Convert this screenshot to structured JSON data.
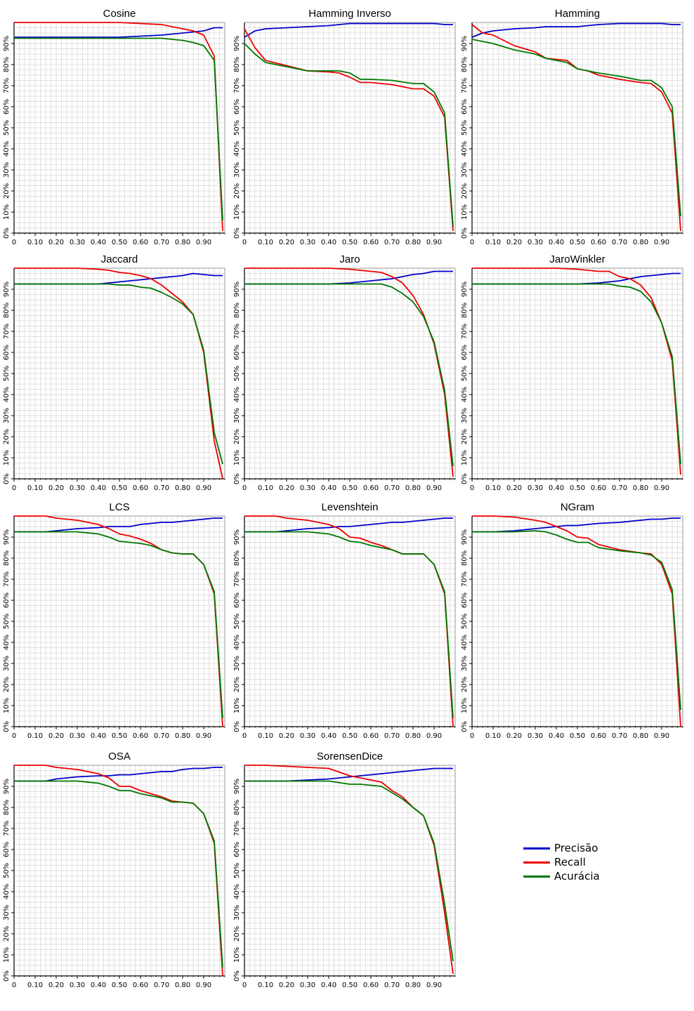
{
  "colors": {
    "precisao": "#0000cc",
    "recall": "#ee0000",
    "acuracia": "#007700",
    "grid": "#d9d9d9",
    "axis": "#000000"
  },
  "axes": {
    "x_ticks": [
      "0",
      "0.10",
      "0.20",
      "0.30",
      "0.40",
      "0.50",
      "0.60",
      "0.70",
      "0.80",
      "0.90"
    ],
    "y_ticks": [
      "0%",
      "10%",
      "20%",
      "30%",
      "40%",
      "50%",
      "60%",
      "70%",
      "80%",
      "90%"
    ]
  },
  "legend": [
    {
      "key": "precisao",
      "label": "Precisão"
    },
    {
      "key": "recall",
      "label": "Recall"
    },
    {
      "key": "acuracia",
      "label": "Acurácia"
    }
  ],
  "chart_data": [
    {
      "type": "line",
      "title": "Cosine",
      "xlim": [
        0,
        1
      ],
      "ylim": [
        0,
        100
      ],
      "grid": true,
      "x": [
        0,
        0.1,
        0.2,
        0.3,
        0.4,
        0.5,
        0.6,
        0.7,
        0.8,
        0.85,
        0.9,
        0.95,
        0.99
      ],
      "series": [
        {
          "name": "Precisão",
          "values": [
            93,
            93,
            93,
            93,
            93,
            93,
            93.5,
            94,
            95,
            95.5,
            96,
            97.5,
            97.5
          ]
        },
        {
          "name": "Recall",
          "values": [
            100,
            100,
            100,
            100,
            100,
            100,
            99.5,
            99,
            97,
            96,
            94,
            84,
            1
          ]
        },
        {
          "name": "Acurácia",
          "values": [
            92.5,
            92.5,
            92.5,
            92.5,
            92.5,
            92.5,
            92.5,
            92.5,
            91.5,
            90.5,
            89,
            82,
            6
          ]
        }
      ]
    },
    {
      "type": "line",
      "title": "Hamming Inverso",
      "xlim": [
        0,
        1
      ],
      "ylim": [
        0,
        100
      ],
      "grid": true,
      "x": [
        0,
        0.05,
        0.1,
        0.2,
        0.3,
        0.4,
        0.45,
        0.5,
        0.55,
        0.6,
        0.7,
        0.8,
        0.85,
        0.9,
        0.95,
        0.99
      ],
      "series": [
        {
          "name": "Precisão",
          "values": [
            93,
            96,
            97,
            97.5,
            98,
            98.5,
            99,
            99.5,
            99.5,
            99.5,
            99.5,
            99.5,
            99.5,
            99.5,
            99,
            99
          ]
        },
        {
          "name": "Recall",
          "values": [
            97,
            88,
            82,
            79.5,
            77,
            76.5,
            76,
            74,
            71.5,
            71.5,
            70.5,
            68.5,
            68.5,
            65,
            55,
            1
          ]
        },
        {
          "name": "Acurácia",
          "values": [
            90,
            85,
            81,
            79,
            77,
            77,
            77,
            76,
            73,
            73,
            72.5,
            71,
            71,
            67,
            57,
            3
          ]
        }
      ]
    },
    {
      "type": "line",
      "title": "Hamming",
      "xlim": [
        0,
        1
      ],
      "ylim": [
        0,
        100
      ],
      "grid": true,
      "x": [
        0,
        0.05,
        0.1,
        0.2,
        0.3,
        0.35,
        0.45,
        0.5,
        0.55,
        0.6,
        0.7,
        0.8,
        0.85,
        0.9,
        0.95,
        0.99
      ],
      "series": [
        {
          "name": "Precisão",
          "values": [
            93,
            95,
            96,
            97,
            97.5,
            98,
            98,
            98,
            98.5,
            99,
            99.5,
            99.5,
            99.5,
            99.5,
            99,
            99
          ]
        },
        {
          "name": "Recall",
          "values": [
            99,
            95,
            94,
            89,
            86,
            83,
            82,
            78,
            77,
            75,
            73,
            71.5,
            71,
            67,
            57,
            1
          ]
        },
        {
          "name": "Acurácia",
          "values": [
            92,
            91,
            90,
            87,
            85,
            83,
            81,
            78,
            77,
            76,
            74.5,
            72.5,
            72.5,
            69,
            60,
            8
          ]
        }
      ]
    },
    {
      "type": "line",
      "title": "Jaccard",
      "xlim": [
        0,
        1
      ],
      "ylim": [
        0,
        100
      ],
      "grid": true,
      "x": [
        0,
        0.1,
        0.2,
        0.3,
        0.4,
        0.45,
        0.5,
        0.55,
        0.6,
        0.65,
        0.7,
        0.75,
        0.8,
        0.85,
        0.9,
        0.95,
        0.99
      ],
      "series": [
        {
          "name": "Precisão",
          "values": [
            92.5,
            92.5,
            92.5,
            92.5,
            92.5,
            93,
            93.5,
            94,
            94.5,
            95,
            95.5,
            96,
            96.5,
            97.5,
            97,
            96.5,
            96.5
          ]
        },
        {
          "name": "Recall",
          "values": [
            100,
            100,
            100,
            100,
            99.5,
            99,
            98,
            97.5,
            96.5,
            95,
            92,
            88,
            84,
            78,
            60,
            18,
            0
          ]
        },
        {
          "name": "Acurácia",
          "values": [
            92.5,
            92.5,
            92.5,
            92.5,
            92.5,
            92.5,
            92,
            92,
            91,
            90.5,
            88.5,
            86,
            83,
            78,
            61,
            22,
            7
          ]
        }
      ]
    },
    {
      "type": "line",
      "title": "Jaro",
      "xlim": [
        0,
        1
      ],
      "ylim": [
        0,
        100
      ],
      "grid": true,
      "x": [
        0,
        0.1,
        0.2,
        0.3,
        0.4,
        0.5,
        0.6,
        0.65,
        0.7,
        0.75,
        0.8,
        0.85,
        0.9,
        0.95,
        0.99
      ],
      "series": [
        {
          "name": "Precisão",
          "values": [
            92.5,
            92.5,
            92.5,
            92.5,
            92.5,
            93,
            94,
            94.5,
            95,
            96,
            97,
            97.5,
            98.5,
            98.5,
            98.5
          ]
        },
        {
          "name": "Recall",
          "values": [
            100,
            100,
            100,
            100,
            100,
            99.5,
            98.5,
            98,
            96,
            93,
            87,
            78,
            64,
            40,
            1
          ]
        },
        {
          "name": "Acurácia",
          "values": [
            92.5,
            92.5,
            92.5,
            92.5,
            92.5,
            92.5,
            92.5,
            92.5,
            91,
            88,
            84,
            77,
            65,
            42,
            6
          ]
        }
      ]
    },
    {
      "type": "line",
      "title": "JaroWinkler",
      "xlim": [
        0,
        1
      ],
      "ylim": [
        0,
        100
      ],
      "grid": true,
      "x": [
        0,
        0.1,
        0.2,
        0.3,
        0.4,
        0.5,
        0.6,
        0.65,
        0.7,
        0.75,
        0.8,
        0.85,
        0.9,
        0.95,
        0.99
      ],
      "series": [
        {
          "name": "Precisão",
          "values": [
            92.5,
            92.5,
            92.5,
            92.5,
            92.5,
            92.5,
            93,
            93.5,
            94,
            95,
            96,
            96.5,
            97,
            97.5,
            97.5
          ]
        },
        {
          "name": "Recall",
          "values": [
            100,
            100,
            100,
            100,
            100,
            99.5,
            98.5,
            98.5,
            96,
            95,
            92,
            86,
            74,
            56,
            2
          ]
        },
        {
          "name": "Acurácia",
          "values": [
            92.5,
            92.5,
            92.5,
            92.5,
            92.5,
            92.5,
            92.5,
            92.5,
            91.5,
            91,
            89,
            84,
            74,
            58,
            7
          ]
        }
      ]
    },
    {
      "type": "line",
      "title": "LCS",
      "xlim": [
        0,
        1
      ],
      "ylim": [
        0,
        100
      ],
      "grid": true,
      "x": [
        0,
        0.1,
        0.15,
        0.2,
        0.3,
        0.4,
        0.45,
        0.5,
        0.55,
        0.6,
        0.65,
        0.7,
        0.75,
        0.8,
        0.85,
        0.9,
        0.95,
        0.99
      ],
      "series": [
        {
          "name": "Precisão",
          "values": [
            92.5,
            92.5,
            92.5,
            93,
            94,
            94.5,
            95,
            95,
            95,
            96,
            96.5,
            97,
            97,
            97.5,
            98,
            98.5,
            99,
            99
          ]
        },
        {
          "name": "Recall",
          "values": [
            100,
            100,
            100,
            99,
            98,
            96,
            94,
            91.5,
            90.5,
            89,
            87,
            84,
            82.5,
            82,
            82,
            77,
            63,
            0
          ]
        },
        {
          "name": "Acurácia",
          "values": [
            92.5,
            92.5,
            92.5,
            92.5,
            92.5,
            91.5,
            90,
            88,
            87.5,
            87,
            86,
            84,
            82.5,
            82,
            82,
            77,
            64,
            4
          ]
        }
      ]
    },
    {
      "type": "line",
      "title": "Levenshtein",
      "xlim": [
        0,
        1
      ],
      "ylim": [
        0,
        100
      ],
      "grid": true,
      "x": [
        0,
        0.1,
        0.15,
        0.2,
        0.3,
        0.4,
        0.45,
        0.5,
        0.55,
        0.6,
        0.65,
        0.7,
        0.75,
        0.8,
        0.85,
        0.9,
        0.95,
        0.99
      ],
      "series": [
        {
          "name": "Precisão",
          "values": [
            92.5,
            92.5,
            92.5,
            93,
            94,
            94.5,
            95,
            95,
            95.5,
            96,
            96.5,
            97,
            97,
            97.5,
            98,
            98.5,
            99,
            99
          ]
        },
        {
          "name": "Recall",
          "values": [
            100,
            100,
            100,
            99,
            98,
            96,
            94,
            90,
            89.5,
            87.5,
            86,
            84,
            82,
            82,
            82,
            77,
            63,
            0
          ]
        },
        {
          "name": "Acurácia",
          "values": [
            92.5,
            92.5,
            92.5,
            92.5,
            92.5,
            91.5,
            90,
            88,
            87.5,
            86,
            85,
            84,
            82,
            82,
            82,
            77,
            64,
            4
          ]
        }
      ]
    },
    {
      "type": "line",
      "title": "NGram",
      "xlim": [
        0,
        1
      ],
      "ylim": [
        0,
        100
      ],
      "grid": true,
      "x": [
        0,
        0.1,
        0.2,
        0.3,
        0.35,
        0.4,
        0.45,
        0.5,
        0.55,
        0.6,
        0.7,
        0.8,
        0.85,
        0.9,
        0.95,
        0.99
      ],
      "series": [
        {
          "name": "Precisão",
          "values": [
            92.5,
            92.5,
            93,
            94,
            94.5,
            95,
            95.5,
            95.5,
            96,
            96.5,
            97,
            98,
            98.5,
            98.5,
            99,
            99
          ]
        },
        {
          "name": "Recall",
          "values": [
            100,
            100,
            99.5,
            98,
            97,
            95,
            93,
            90,
            89.5,
            86.5,
            84,
            82.5,
            82,
            77,
            63,
            0
          ]
        },
        {
          "name": "Acurácia",
          "values": [
            92.5,
            92.5,
            92.5,
            93,
            92.5,
            91,
            89,
            87.5,
            87.5,
            85,
            83.5,
            82.5,
            81.5,
            78,
            65,
            8
          ]
        }
      ]
    },
    {
      "type": "line",
      "title": "OSA",
      "xlim": [
        0,
        1
      ],
      "ylim": [
        0,
        100
      ],
      "grid": true,
      "x": [
        0,
        0.1,
        0.15,
        0.2,
        0.3,
        0.4,
        0.45,
        0.5,
        0.55,
        0.6,
        0.65,
        0.7,
        0.75,
        0.8,
        0.85,
        0.9,
        0.95,
        0.99
      ],
      "series": [
        {
          "name": "Precisão",
          "values": [
            92.5,
            92.5,
            92.5,
            93.5,
            94.5,
            95,
            95,
            95.5,
            95.5,
            96,
            96.5,
            97,
            97,
            98,
            98.5,
            98.5,
            99,
            99
          ]
        },
        {
          "name": "Recall",
          "values": [
            100,
            100,
            100,
            99,
            98,
            96,
            94,
            90,
            90,
            88,
            86.5,
            85,
            83,
            82.5,
            82,
            77,
            63,
            0
          ]
        },
        {
          "name": "Acurácia",
          "values": [
            92.5,
            92.5,
            92.5,
            92.5,
            92.5,
            91.5,
            90,
            88,
            88,
            86.5,
            85.5,
            84.5,
            82.5,
            82.5,
            82,
            77,
            64,
            4
          ]
        }
      ]
    },
    {
      "type": "line",
      "title": "SorensenDice",
      "xlim": [
        0,
        1
      ],
      "ylim": [
        0,
        100
      ],
      "grid": true,
      "x": [
        0,
        0.1,
        0.2,
        0.3,
        0.4,
        0.5,
        0.55,
        0.6,
        0.65,
        0.7,
        0.75,
        0.8,
        0.85,
        0.9,
        0.95,
        0.99
      ],
      "series": [
        {
          "name": "Precisão",
          "values": [
            92.5,
            92.5,
            92.5,
            93,
            93.5,
            94.5,
            95,
            95.5,
            96,
            96.5,
            97,
            97.5,
            98,
            98.5,
            98.5,
            98.5
          ]
        },
        {
          "name": "Recall",
          "values": [
            100,
            100,
            99.5,
            99,
            98.5,
            95,
            94,
            93,
            92,
            88,
            85,
            80,
            76,
            62,
            30,
            1
          ]
        },
        {
          "name": "Acurácia",
          "values": [
            92.5,
            92.5,
            92.5,
            92.5,
            92.5,
            91,
            91,
            90.5,
            90,
            87,
            84,
            80,
            76,
            63,
            34,
            7
          ]
        }
      ]
    }
  ]
}
